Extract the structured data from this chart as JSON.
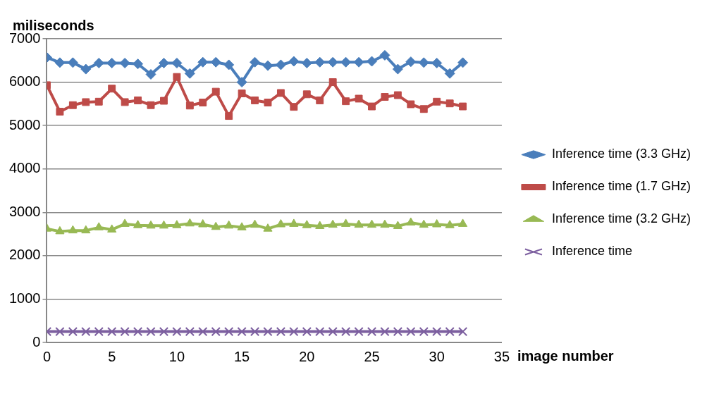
{
  "chart_data": {
    "type": "line",
    "xlabel": "image number",
    "ylabel": "miliseconds",
    "xlim": [
      0,
      35
    ],
    "xticks": [
      0,
      5,
      10,
      15,
      20,
      25,
      30,
      35
    ],
    "ylim": [
      0,
      7000
    ],
    "yticks": [
      0,
      1000,
      2000,
      3000,
      4000,
      5000,
      6000,
      7000
    ],
    "grid": "y",
    "legend": "right",
    "line_style": "solid",
    "x": [
      0,
      1,
      2,
      3,
      4,
      5,
      6,
      7,
      8,
      9,
      10,
      11,
      12,
      13,
      14,
      15,
      16,
      17,
      18,
      19,
      20,
      21,
      22,
      23,
      24,
      25,
      26,
      27,
      28,
      29,
      30,
      31,
      32
    ],
    "series": [
      {
        "name": "Inference time (3.3 GHz)",
        "color": "#4a7ebb",
        "marker": "diamond",
        "values": [
          6570,
          6450,
          6450,
          6300,
          6440,
          6440,
          6440,
          6420,
          6180,
          6440,
          6440,
          6200,
          6460,
          6460,
          6400,
          6000,
          6460,
          6380,
          6400,
          6480,
          6440,
          6460,
          6460,
          6460,
          6460,
          6480,
          6620,
          6300,
          6470,
          6450,
          6440,
          6200,
          6450
        ]
      },
      {
        "name": "Inference time (1.7 GHz)",
        "color": "#be4b48",
        "marker": "square",
        "values": [
          5930,
          5320,
          5470,
          5540,
          5550,
          5850,
          5540,
          5580,
          5470,
          5570,
          6120,
          5460,
          5530,
          5780,
          5220,
          5740,
          5580,
          5530,
          5750,
          5430,
          5720,
          5580,
          6000,
          5560,
          5620,
          5440,
          5660,
          5700,
          5490,
          5380,
          5550,
          5510,
          5440
        ]
      },
      {
        "name": "Inference time (3.2 GHz)",
        "color": "#98b954",
        "marker": "triangle",
        "values": [
          2620,
          2560,
          2580,
          2580,
          2650,
          2600,
          2730,
          2700,
          2690,
          2690,
          2700,
          2740,
          2720,
          2660,
          2690,
          2650,
          2710,
          2620,
          2720,
          2730,
          2700,
          2680,
          2710,
          2730,
          2710,
          2710,
          2710,
          2680,
          2760,
          2710,
          2720,
          2700,
          2730
        ]
      },
      {
        "name": "Inference time",
        "color": "#7d60a0",
        "marker": "cross",
        "values": [
          250,
          250,
          250,
          250,
          250,
          250,
          250,
          250,
          250,
          250,
          250,
          250,
          250,
          250,
          250,
          250,
          250,
          250,
          250,
          250,
          250,
          250,
          250,
          250,
          250,
          250,
          250,
          250,
          250,
          250,
          250,
          250,
          250
        ]
      }
    ]
  }
}
